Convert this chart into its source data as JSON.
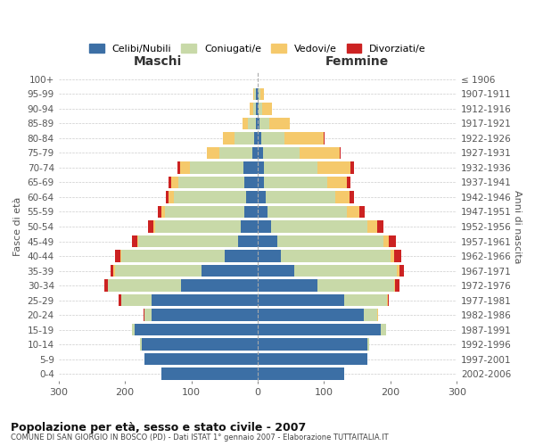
{
  "age_groups": [
    "0-4",
    "5-9",
    "10-14",
    "15-19",
    "20-24",
    "25-29",
    "30-34",
    "35-39",
    "40-44",
    "45-49",
    "50-54",
    "55-59",
    "60-64",
    "65-69",
    "70-74",
    "75-79",
    "80-84",
    "85-89",
    "90-94",
    "95-99",
    "100+"
  ],
  "birth_years": [
    "2002-2006",
    "1997-2001",
    "1992-1996",
    "1987-1991",
    "1982-1986",
    "1977-1981",
    "1972-1976",
    "1967-1971",
    "1962-1966",
    "1957-1961",
    "1952-1956",
    "1947-1951",
    "1942-1946",
    "1937-1941",
    "1932-1936",
    "1927-1931",
    "1922-1926",
    "1917-1921",
    "1912-1916",
    "1907-1911",
    "≤ 1906"
  ],
  "colors": {
    "celibe": "#3c6fa5",
    "coniugato": "#c8d9a8",
    "vedovo": "#f5c96b",
    "divorziato": "#cc2222"
  },
  "males": {
    "celibe": [
      145,
      170,
      175,
      185,
      160,
      160,
      115,
      85,
      50,
      30,
      25,
      20,
      18,
      20,
      22,
      8,
      5,
      3,
      2,
      2,
      0
    ],
    "coniugato": [
      0,
      0,
      2,
      5,
      10,
      45,
      110,
      130,
      155,
      150,
      130,
      120,
      108,
      100,
      80,
      50,
      30,
      12,
      5,
      3,
      0
    ],
    "vedovo": [
      0,
      0,
      0,
      0,
      1,
      1,
      1,
      2,
      2,
      2,
      2,
      5,
      8,
      10,
      15,
      18,
      18,
      8,
      5,
      2,
      0
    ],
    "divorziato": [
      0,
      0,
      0,
      0,
      1,
      3,
      5,
      5,
      8,
      8,
      8,
      6,
      5,
      4,
      4,
      1,
      0,
      0,
      0,
      0,
      0
    ]
  },
  "females": {
    "nubile": [
      130,
      165,
      165,
      185,
      160,
      130,
      90,
      55,
      35,
      30,
      20,
      15,
      12,
      10,
      10,
      8,
      5,
      3,
      2,
      2,
      0
    ],
    "coniugata": [
      0,
      0,
      3,
      8,
      20,
      65,
      115,
      155,
      165,
      160,
      145,
      120,
      105,
      95,
      80,
      55,
      35,
      15,
      5,
      2,
      0
    ],
    "vedova": [
      0,
      0,
      0,
      0,
      1,
      1,
      2,
      3,
      5,
      8,
      15,
      18,
      22,
      30,
      50,
      60,
      60,
      30,
      15,
      5,
      0
    ],
    "divorziata": [
      0,
      0,
      0,
      0,
      1,
      2,
      6,
      8,
      12,
      10,
      10,
      8,
      6,
      5,
      5,
      2,
      1,
      0,
      0,
      0,
      0
    ]
  },
  "xlim": 300,
  "title": "Popolazione per età, sesso e stato civile - 2007",
  "subtitle": "COMUNE DI SAN GIORGIO IN BOSCO (PD) - Dati ISTAT 1° gennaio 2007 - Elaborazione TUTTAITALIA.IT",
  "xlabel_left": "Maschi",
  "xlabel_right": "Femmine",
  "ylabel_left": "Fasce di età",
  "ylabel_right": "Anni di nascita",
  "legend_labels": [
    "Celibi/Nubili",
    "Coniugati/e",
    "Vedovi/e",
    "Divorziati/e"
  ],
  "bg_color": "#ffffff",
  "grid_color": "#cccccc"
}
